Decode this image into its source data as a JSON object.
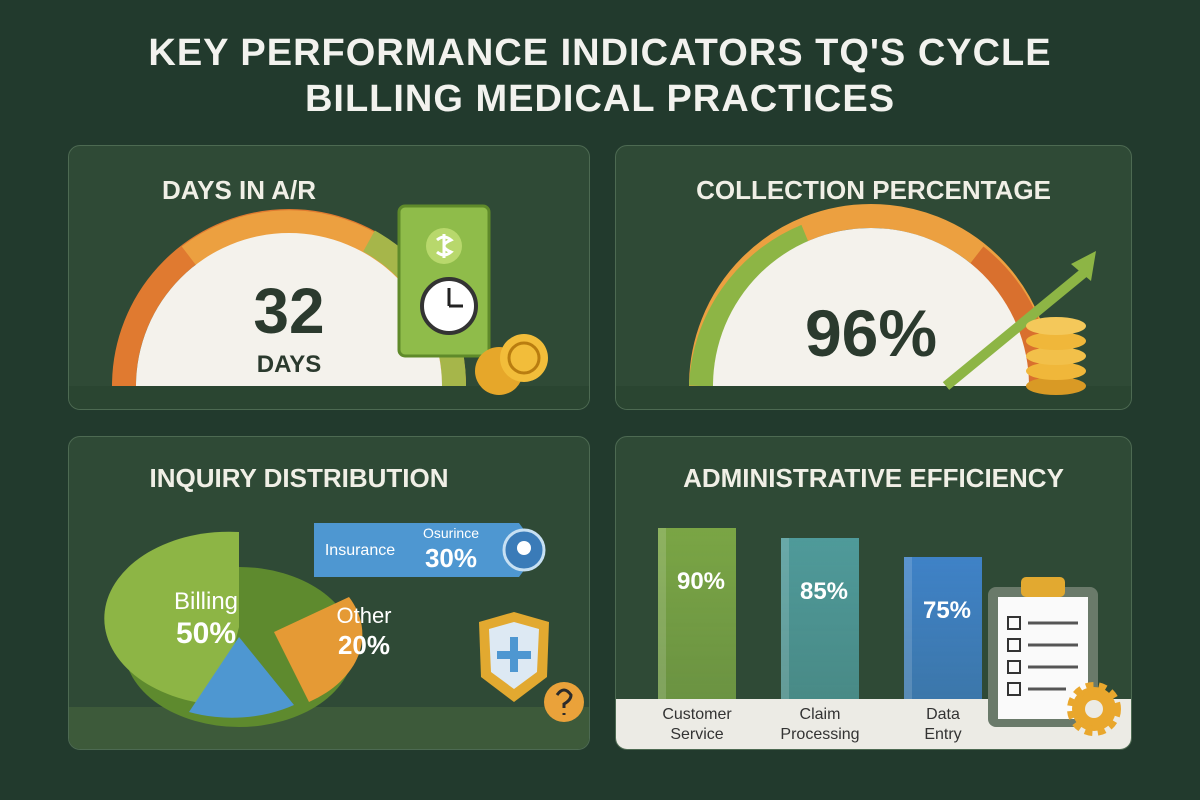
{
  "title_line1": "KEY PERFORMANCE INDICATORS TQ'S CYCLE",
  "title_line2": "BILLING MEDICAL PRACTICES",
  "days_in_ar": {
    "title": "DAYS IN A/R",
    "value": "32",
    "unit": "DAYS",
    "icons": [
      "dollar-bill-icon",
      "clock-icon",
      "coin-icon"
    ]
  },
  "collection": {
    "title": "COLLECTION PERCENTAGE",
    "value": "96%",
    "gauge_level": 0.96,
    "icons": [
      "arrow-up-icon",
      "coin-stack-icon"
    ]
  },
  "inquiry": {
    "title": "INQUIRY DISTRIBUTION",
    "billing_label": "Billing",
    "billing_value": "50%",
    "insurance_label": "Insurance",
    "insurance_sub": "Osurince",
    "insurance_value": "30%",
    "other_label": "Other",
    "other_value": "20%",
    "icons": [
      "shield-plus-icon",
      "question-icon",
      "location-pin-icon"
    ]
  },
  "admin": {
    "title": "ADMINISTRATIVE EFFICIENCY",
    "bars": [
      {
        "label1": "Customer",
        "label2": "Service",
        "value": "90%"
      },
      {
        "label1": "Claim",
        "label2": "Processing",
        "value": "85%"
      },
      {
        "label1": "Data",
        "label2": "Entry",
        "value": "75%"
      }
    ],
    "icons": [
      "clipboard-checklist-icon",
      "gear-icon"
    ]
  },
  "chart_data": [
    {
      "type": "pie",
      "title": "INQUIRY DISTRIBUTION",
      "categories": [
        "Billing",
        "Insurance",
        "Other"
      ],
      "values": [
        50,
        30,
        20
      ],
      "colors": [
        "#8db545",
        "#4e97d1",
        "#e59a35"
      ]
    },
    {
      "type": "bar",
      "title": "ADMINISTRATIVE EFFICIENCY",
      "categories": [
        "Customer Service",
        "Claim Processing",
        "Data Entry"
      ],
      "values": [
        90,
        85,
        75
      ],
      "colors": [
        "#7aa545",
        "#4f9a9a",
        "#3f82c7"
      ]
    }
  ]
}
